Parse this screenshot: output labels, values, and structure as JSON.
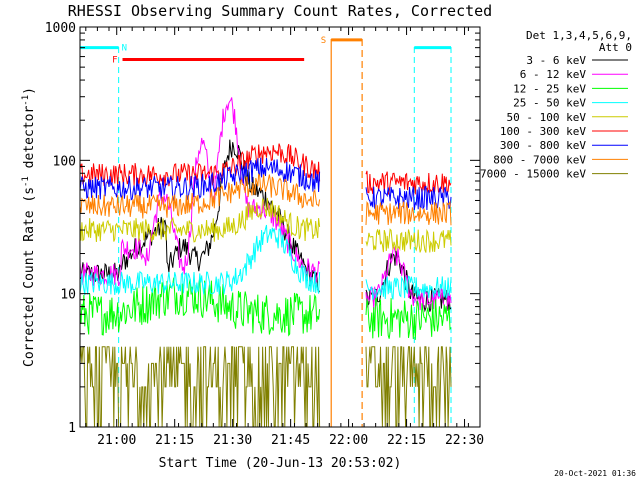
{
  "chart_data": {
    "type": "line",
    "title": "RHESSI Observing Summary Count Rates, Corrected",
    "xlabel": "Start Time (20-Jun-13 20:53:02)",
    "ylabel": "Corrected Count Rate (s",
    "ylabel_sup1": "-1",
    "ylabel_mid": " detector",
    "ylabel_sup2": "-1",
    "ylabel_end": ")",
    "yscale": "log",
    "ylim": [
      1,
      1000
    ],
    "xlim_min": [
      -2.5,
      101
    ],
    "x_ticks": [
      {
        "min": 7,
        "label": "21:00"
      },
      {
        "min": 22,
        "label": "21:15"
      },
      {
        "min": 37,
        "label": "21:30"
      },
      {
        "min": 52,
        "label": "21:45"
      },
      {
        "min": 67,
        "label": "22:00"
      },
      {
        "min": 82,
        "label": "22:15"
      },
      {
        "min": 97,
        "label": "22:30"
      }
    ],
    "y_ticks": [
      {
        "v": 1,
        "label": "1"
      },
      {
        "v": 10,
        "label": "10"
      },
      {
        "v": 100,
        "label": "100"
      },
      {
        "v": 1000,
        "label": "1000"
      }
    ],
    "legend_header": [
      "Det 1,3,4,5,6,9,",
      "Att 0"
    ],
    "legend_position": "right",
    "series": [
      {
        "name": "3 - 6 keV",
        "color": "#000000"
      },
      {
        "name": "6 - 12 keV",
        "color": "#ff00ff"
      },
      {
        "name": "12 - 25 keV",
        "color": "#00ff00"
      },
      {
        "name": "25 - 50 keV",
        "color": "#00ffff"
      },
      {
        "name": "50 - 100 keV",
        "color": "#cccc00"
      },
      {
        "name": "100 - 300 keV",
        "color": "#ff0000"
      },
      {
        "name": "300 - 800 keV",
        "color": "#0000ff"
      },
      {
        "name": "800 - 7000 keV",
        "color": "#ff8000"
      },
      {
        "name": "7000 - 15000 keV",
        "color": "#808000"
      }
    ],
    "flags": [
      {
        "label": "N",
        "color": "#00ffff",
        "start": -2.5,
        "end": 7.5,
        "y": 700
      },
      {
        "label": "F",
        "color": "#ff0000",
        "start": 8.5,
        "end": 55.5,
        "y": 570
      },
      {
        "label": "S",
        "color": "#ff8000",
        "start": 62.5,
        "end": 70.5,
        "y": 800
      },
      {
        "label": "",
        "color": "#00ffff",
        "start": 84,
        "end": 93.5,
        "y": 700
      }
    ],
    "night_bands": [
      {
        "start": 7.5,
        "end": 84,
        "color": "#00ffff"
      },
      {
        "start": 93.5,
        "end": 101,
        "color": "#00ffff"
      }
    ],
    "saa_lines": [
      {
        "x": 62.5,
        "style": "solid",
        "color": "#ff8000"
      },
      {
        "x": 70.5,
        "style": "dashed",
        "color": "#ff8000"
      }
    ],
    "data_segments": [
      {
        "x_start": -2.5,
        "x_end": 59.5
      },
      {
        "x_start": 71.5,
        "x_end": 93.5
      }
    ],
    "background_levels": [
      {
        "series": "3 - 6 keV",
        "seg1": 14,
        "seg2": 9
      },
      {
        "series": "6 - 12 keV",
        "seg1": 14,
        "seg2": 9
      },
      {
        "series": "12 - 25 keV",
        "seg1": 7,
        "seg2": 6.5
      },
      {
        "series": "25 - 50 keV",
        "seg1": 12,
        "seg2": 11
      },
      {
        "series": "50 - 100 keV",
        "seg1": 30,
        "seg2": 25
      },
      {
        "series": "100 - 300 keV",
        "seg1": 78,
        "seg2": 68
      },
      {
        "series": "300 - 800 keV",
        "seg1": 62,
        "seg2": 52
      },
      {
        "series": "800 - 7000 keV",
        "seg1": 45,
        "seg2": 40
      },
      {
        "series": "7000 - 15000 keV",
        "seg1": 2,
        "seg2": 2
      }
    ],
    "flare_peaks": [
      {
        "series": "6 - 12 keV",
        "x": 36,
        "y": 280
      },
      {
        "series": "3 - 6 keV",
        "x": 37.5,
        "y": 110
      },
      {
        "series": "25 - 50 keV",
        "x": 47,
        "y": 28
      },
      {
        "series": "100 - 300 keV",
        "x": 47,
        "y": 110
      }
    ],
    "footer": "20-Oct-2021 01:36"
  }
}
